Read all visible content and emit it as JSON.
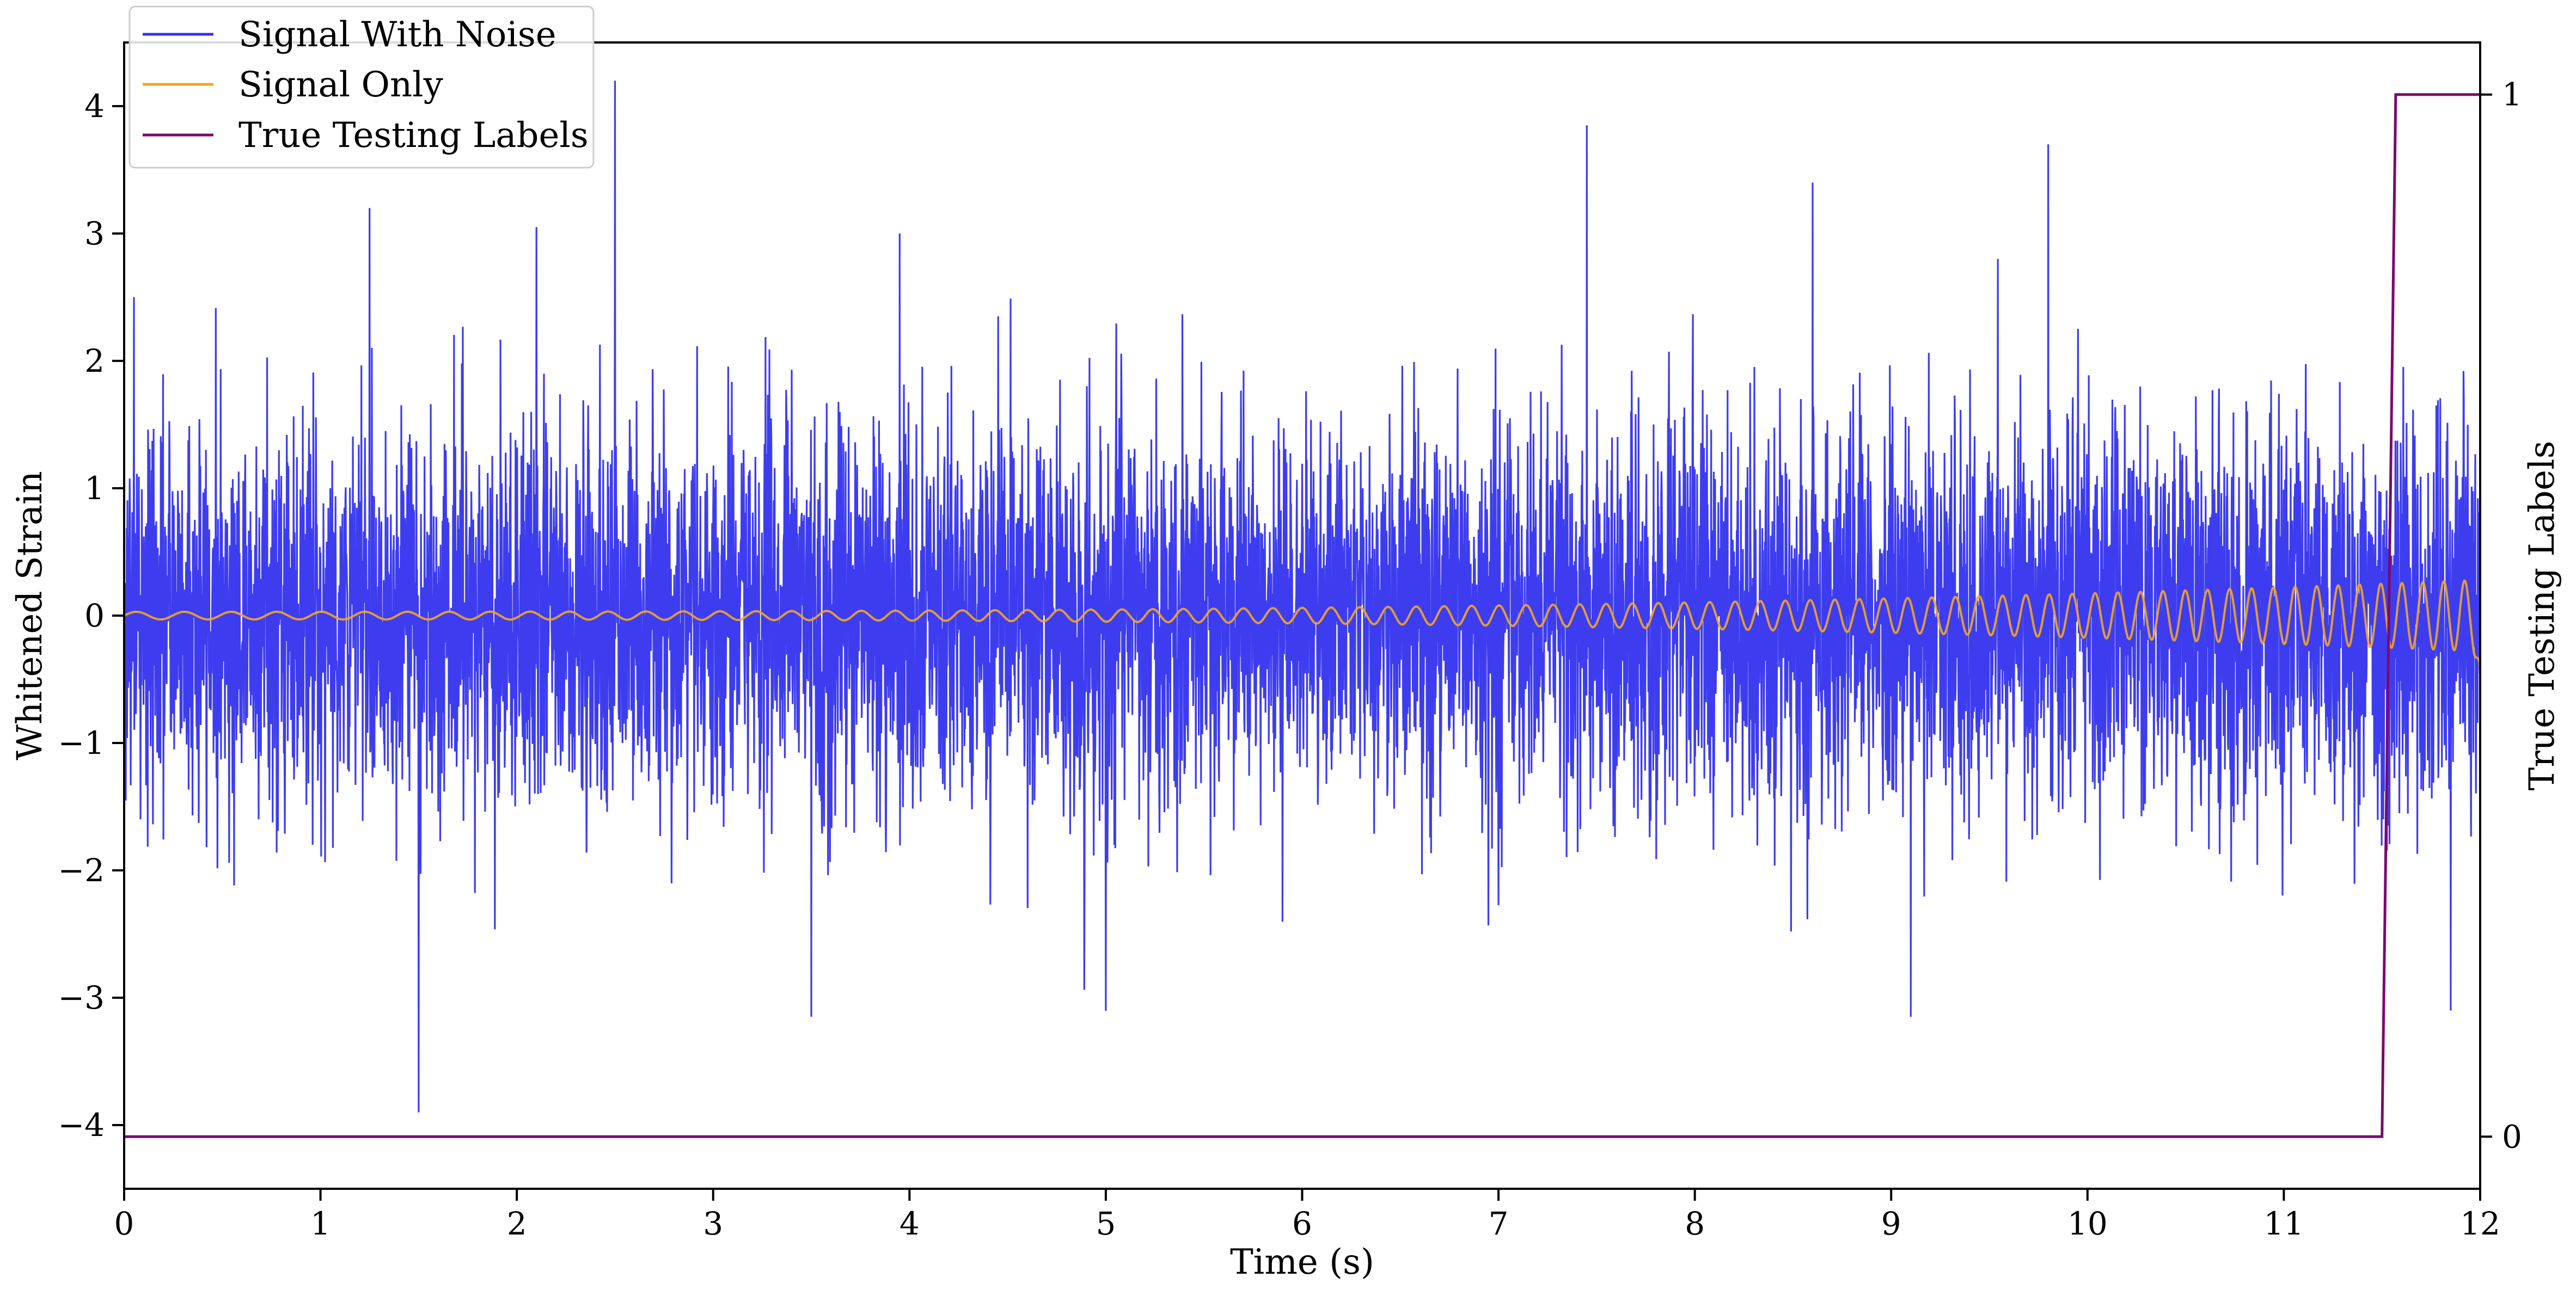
{
  "chart_data": {
    "type": "line",
    "xlabel": "Time (s)",
    "ylabel": "Whitened Strain",
    "y2label": "True Testing Labels",
    "xlim": [
      0,
      12
    ],
    "ylim": [
      -4.5,
      4.5
    ],
    "y2lim": [
      -0.05,
      1.05
    ],
    "x_ticks": [
      0,
      1,
      2,
      3,
      4,
      5,
      6,
      7,
      8,
      9,
      10,
      11,
      12
    ],
    "x_tick_labels": [
      "0",
      "1",
      "2",
      "3",
      "4",
      "5",
      "6",
      "7",
      "8",
      "9",
      "10",
      "11",
      "12"
    ],
    "y_ticks": [
      4,
      3,
      2,
      1,
      0,
      -1,
      -2,
      -3,
      -4
    ],
    "y_tick_labels": [
      "4",
      "3",
      "2",
      "1",
      "0",
      "−1",
      "−2",
      "−3",
      "−4"
    ],
    "y2_ticks": [
      1,
      0
    ],
    "y2_tick_labels": [
      "1",
      "0"
    ],
    "grid": false,
    "legend_position": "top-left",
    "series": [
      {
        "name": "Signal With Noise",
        "color": "#3333ee",
        "kind": "noise",
        "std": 0.75,
        "notable_spikes": [
          {
            "x": 0.05,
            "y": 2.5
          },
          {
            "x": 1.25,
            "y": 3.2
          },
          {
            "x": 2.1,
            "y": 3.05
          },
          {
            "x": 2.5,
            "y": 4.2
          },
          {
            "x": 3.95,
            "y": 3.0
          },
          {
            "x": 7.45,
            "y": 3.85
          },
          {
            "x": 8.6,
            "y": 3.4
          },
          {
            "x": 9.8,
            "y": 3.7
          },
          {
            "x": 1.5,
            "y": -3.9
          },
          {
            "x": 3.5,
            "y": -3.15
          },
          {
            "x": 9.1,
            "y": -3.15
          },
          {
            "x": 11.85,
            "y": -3.1
          }
        ]
      },
      {
        "name": "Signal Only",
        "color": "#f5a623",
        "kind": "chirp",
        "amplitude_start": 0.03,
        "amplitude_end": 0.28,
        "freq_start_hz": 4,
        "freq_end_hz": 9.5,
        "end_value": -0.4
      },
      {
        "name": "True Testing Labels",
        "color": "#7a0a6e",
        "axis": "right",
        "x": [
          0,
          11.5,
          11.57,
          12
        ],
        "values": [
          0,
          0,
          1,
          1
        ]
      }
    ]
  }
}
